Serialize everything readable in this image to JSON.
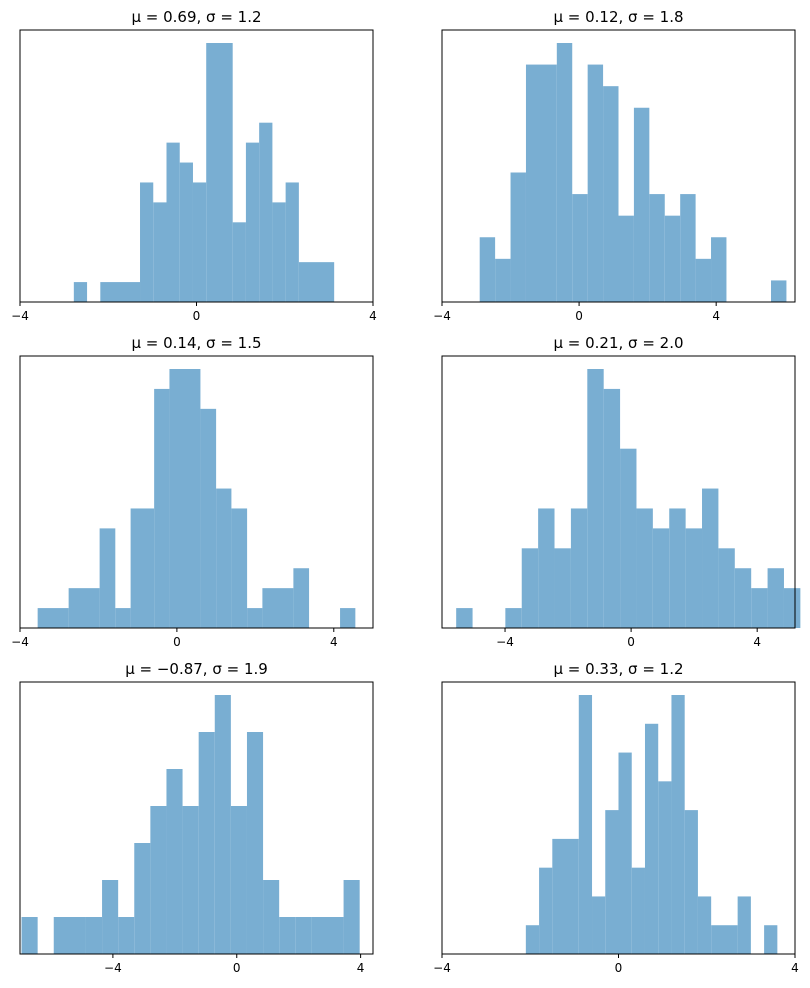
{
  "chart_data": [
    {
      "type": "bar",
      "title": "μ = 0.69,    σ = 1.2",
      "xlabel": "",
      "ylabel": "",
      "xlim": [
        -4,
        4
      ],
      "xticks": [
        -4,
        0,
        4
      ],
      "xtick_labels": [
        "−4",
        "0",
        "4"
      ],
      "y_ticks_shown": false,
      "color": "#79aed2",
      "bins": [
        {
          "x0": -2.78,
          "x1": -2.48,
          "count": 1
        },
        {
          "x0": -2.18,
          "x1": -1.28,
          "count": 1
        },
        {
          "x0": -1.28,
          "x1": -0.98,
          "count": 6
        },
        {
          "x0": -0.98,
          "x1": -0.68,
          "count": 5
        },
        {
          "x0": -0.68,
          "x1": -0.38,
          "count": 8
        },
        {
          "x0": -0.38,
          "x1": -0.08,
          "count": 7
        },
        {
          "x0": -0.08,
          "x1": 0.22,
          "count": 6
        },
        {
          "x0": 0.22,
          "x1": 0.82,
          "count": 13
        },
        {
          "x0": 0.82,
          "x1": 1.12,
          "count": 4
        },
        {
          "x0": 1.12,
          "x1": 1.42,
          "count": 8
        },
        {
          "x0": 1.42,
          "x1": 1.72,
          "count": 9
        },
        {
          "x0": 1.72,
          "x1": 2.02,
          "count": 5
        },
        {
          "x0": 2.02,
          "x1": 2.32,
          "count": 6
        },
        {
          "x0": 2.32,
          "x1": 3.12,
          "count": 2
        }
      ]
    },
    {
      "type": "bar",
      "title": "μ = 0.12,    σ = 1.8",
      "xlabel": "",
      "ylabel": "",
      "xlim": [
        -4,
        6.3
      ],
      "xticks": [
        -4,
        0,
        4
      ],
      "xtick_labels": [
        "−4",
        "0",
        "4"
      ],
      "y_ticks_shown": false,
      "color": "#79aed2",
      "bins": [
        {
          "x0": -2.9,
          "x1": -2.45,
          "count": 3
        },
        {
          "x0": -2.45,
          "x1": -2.0,
          "count": 2
        },
        {
          "x0": -2.0,
          "x1": -1.55,
          "count": 6
        },
        {
          "x0": -1.55,
          "x1": -0.65,
          "count": 11
        },
        {
          "x0": -0.65,
          "x1": -0.2,
          "count": 12
        },
        {
          "x0": -0.2,
          "x1": 0.25,
          "count": 5
        },
        {
          "x0": 0.25,
          "x1": 0.7,
          "count": 11
        },
        {
          "x0": 0.7,
          "x1": 1.15,
          "count": 10
        },
        {
          "x0": 1.15,
          "x1": 1.6,
          "count": 4
        },
        {
          "x0": 1.6,
          "x1": 2.05,
          "count": 9
        },
        {
          "x0": 2.05,
          "x1": 2.5,
          "count": 5
        },
        {
          "x0": 2.5,
          "x1": 2.95,
          "count": 4
        },
        {
          "x0": 2.95,
          "x1": 3.4,
          "count": 5
        },
        {
          "x0": 3.4,
          "x1": 3.85,
          "count": 2
        },
        {
          "x0": 3.85,
          "x1": 4.3,
          "count": 3
        },
        {
          "x0": 5.6,
          "x1": 6.05,
          "count": 1
        }
      ]
    },
    {
      "type": "bar",
      "title": "μ = 0.14,    σ = 1.5",
      "xlabel": "",
      "ylabel": "",
      "xlim": [
        -4,
        5
      ],
      "xticks": [
        -4,
        0,
        4
      ],
      "xtick_labels": [
        "−4",
        "0",
        "4"
      ],
      "y_ticks_shown": false,
      "color": "#79aed2",
      "bins": [
        {
          "x0": -3.55,
          "x1": -2.76,
          "count": 1
        },
        {
          "x0": -2.76,
          "x1": -1.97,
          "count": 2
        },
        {
          "x0": -1.97,
          "x1": -1.57,
          "count": 5
        },
        {
          "x0": -1.57,
          "x1": -1.18,
          "count": 1
        },
        {
          "x0": -1.18,
          "x1": -0.58,
          "count": 6
        },
        {
          "x0": -0.58,
          "x1": -0.19,
          "count": 12
        },
        {
          "x0": -0.19,
          "x1": 0.6,
          "count": 13
        },
        {
          "x0": 0.6,
          "x1": 1.0,
          "count": 11
        },
        {
          "x0": 1.0,
          "x1": 1.39,
          "count": 7
        },
        {
          "x0": 1.39,
          "x1": 1.79,
          "count": 6
        },
        {
          "x0": 1.79,
          "x1": 2.18,
          "count": 1
        },
        {
          "x0": 2.18,
          "x1": 2.97,
          "count": 2
        },
        {
          "x0": 2.97,
          "x1": 3.37,
          "count": 3
        },
        {
          "x0": 4.16,
          "x1": 4.55,
          "count": 1
        }
      ]
    },
    {
      "type": "bar",
      "title": "μ = 0.21,    σ = 2.0",
      "xlabel": "",
      "ylabel": "",
      "xlim": [
        -6,
        5.2
      ],
      "xticks": [
        -4,
        0,
        4
      ],
      "xtick_labels": [
        "−4",
        "0",
        "4"
      ],
      "y_ticks_shown": false,
      "color": "#79aed2",
      "bins": [
        {
          "x0": -5.55,
          "x1": -5.03,
          "count": 1
        },
        {
          "x0": -3.99,
          "x1": -3.47,
          "count": 1
        },
        {
          "x0": -3.47,
          "x1": -2.95,
          "count": 4
        },
        {
          "x0": -2.95,
          "x1": -2.43,
          "count": 6
        },
        {
          "x0": -2.43,
          "x1": -1.91,
          "count": 4
        },
        {
          "x0": -1.91,
          "x1": -1.39,
          "count": 6
        },
        {
          "x0": -1.39,
          "x1": -0.87,
          "count": 13
        },
        {
          "x0": -0.87,
          "x1": -0.35,
          "count": 12
        },
        {
          "x0": -0.35,
          "x1": 0.17,
          "count": 9
        },
        {
          "x0": 0.17,
          "x1": 0.69,
          "count": 6
        },
        {
          "x0": 0.69,
          "x1": 1.21,
          "count": 5
        },
        {
          "x0": 1.21,
          "x1": 1.73,
          "count": 6
        },
        {
          "x0": 1.73,
          "x1": 2.25,
          "count": 5
        },
        {
          "x0": 2.25,
          "x1": 2.77,
          "count": 7
        },
        {
          "x0": 2.77,
          "x1": 3.29,
          "count": 4
        },
        {
          "x0": 3.29,
          "x1": 3.81,
          "count": 3
        },
        {
          "x0": 3.81,
          "x1": 4.33,
          "count": 2
        },
        {
          "x0": 4.33,
          "x1": 4.85,
          "count": 3
        },
        {
          "x0": 4.85,
          "x1": 5.37,
          "count": 2
        }
      ]
    },
    {
      "type": "bar",
      "title": "μ = −0.87,    σ = 1.9",
      "xlabel": "",
      "ylabel": "",
      "xlim": [
        -7,
        4.4
      ],
      "xticks": [
        -4,
        0,
        4
      ],
      "xtick_labels": [
        "−4",
        "0",
        "4"
      ],
      "y_ticks_shown": false,
      "color": "#79aed2",
      "bins": [
        {
          "x0": -6.95,
          "x1": -6.43,
          "count": 1
        },
        {
          "x0": -5.91,
          "x1": -4.87,
          "count": 1
        },
        {
          "x0": -4.87,
          "x1": -4.35,
          "count": 1
        },
        {
          "x0": -4.35,
          "x1": -3.83,
          "count": 2
        },
        {
          "x0": -3.83,
          "x1": -3.31,
          "count": 1
        },
        {
          "x0": -3.31,
          "x1": -2.79,
          "count": 3
        },
        {
          "x0": -2.79,
          "x1": -2.27,
          "count": 4
        },
        {
          "x0": -2.27,
          "x1": -1.75,
          "count": 5
        },
        {
          "x0": -1.75,
          "x1": -1.23,
          "count": 4
        },
        {
          "x0": -1.23,
          "x1": -0.71,
          "count": 6
        },
        {
          "x0": -0.71,
          "x1": -0.19,
          "count": 7
        },
        {
          "x0": -0.19,
          "x1": 0.33,
          "count": 4
        },
        {
          "x0": 0.33,
          "x1": 0.85,
          "count": 6
        },
        {
          "x0": 0.85,
          "x1": 1.37,
          "count": 2
        },
        {
          "x0": 1.37,
          "x1": 1.89,
          "count": 1
        },
        {
          "x0": 1.89,
          "x1": 2.41,
          "count": 1
        },
        {
          "x0": 2.41,
          "x1": 3.45,
          "count": 1
        },
        {
          "x0": 3.45,
          "x1": 3.97,
          "count": 2
        }
      ]
    },
    {
      "type": "bar",
      "title": "μ = 0.33,    σ = 1.2",
      "xlabel": "",
      "ylabel": "",
      "xlim": [
        -4,
        4
      ],
      "xticks": [
        -4,
        0,
        4
      ],
      "xtick_labels": [
        "−4",
        "0",
        "4"
      ],
      "y_ticks_shown": false,
      "color": "#79aed2",
      "bins": [
        {
          "x0": -2.1,
          "x1": -1.8,
          "count": 1
        },
        {
          "x0": -1.8,
          "x1": -1.5,
          "count": 3
        },
        {
          "x0": -1.5,
          "x1": -0.9,
          "count": 4
        },
        {
          "x0": -0.9,
          "x1": -0.6,
          "count": 9
        },
        {
          "x0": -0.6,
          "x1": -0.3,
          "count": 2
        },
        {
          "x0": -0.3,
          "x1": 0.0,
          "count": 5
        },
        {
          "x0": 0.0,
          "x1": 0.3,
          "count": 7
        },
        {
          "x0": 0.3,
          "x1": 0.6,
          "count": 3
        },
        {
          "x0": 0.6,
          "x1": 0.9,
          "count": 8
        },
        {
          "x0": 0.9,
          "x1": 1.2,
          "count": 6
        },
        {
          "x0": 1.2,
          "x1": 1.5,
          "count": 9
        },
        {
          "x0": 1.5,
          "x1": 1.8,
          "count": 5
        },
        {
          "x0": 1.8,
          "x1": 2.1,
          "count": 2
        },
        {
          "x0": 2.1,
          "x1": 2.7,
          "count": 1
        },
        {
          "x0": 2.7,
          "x1": 3.0,
          "count": 2
        },
        {
          "x0": 3.3,
          "x1": 3.6,
          "count": 1
        }
      ]
    }
  ]
}
